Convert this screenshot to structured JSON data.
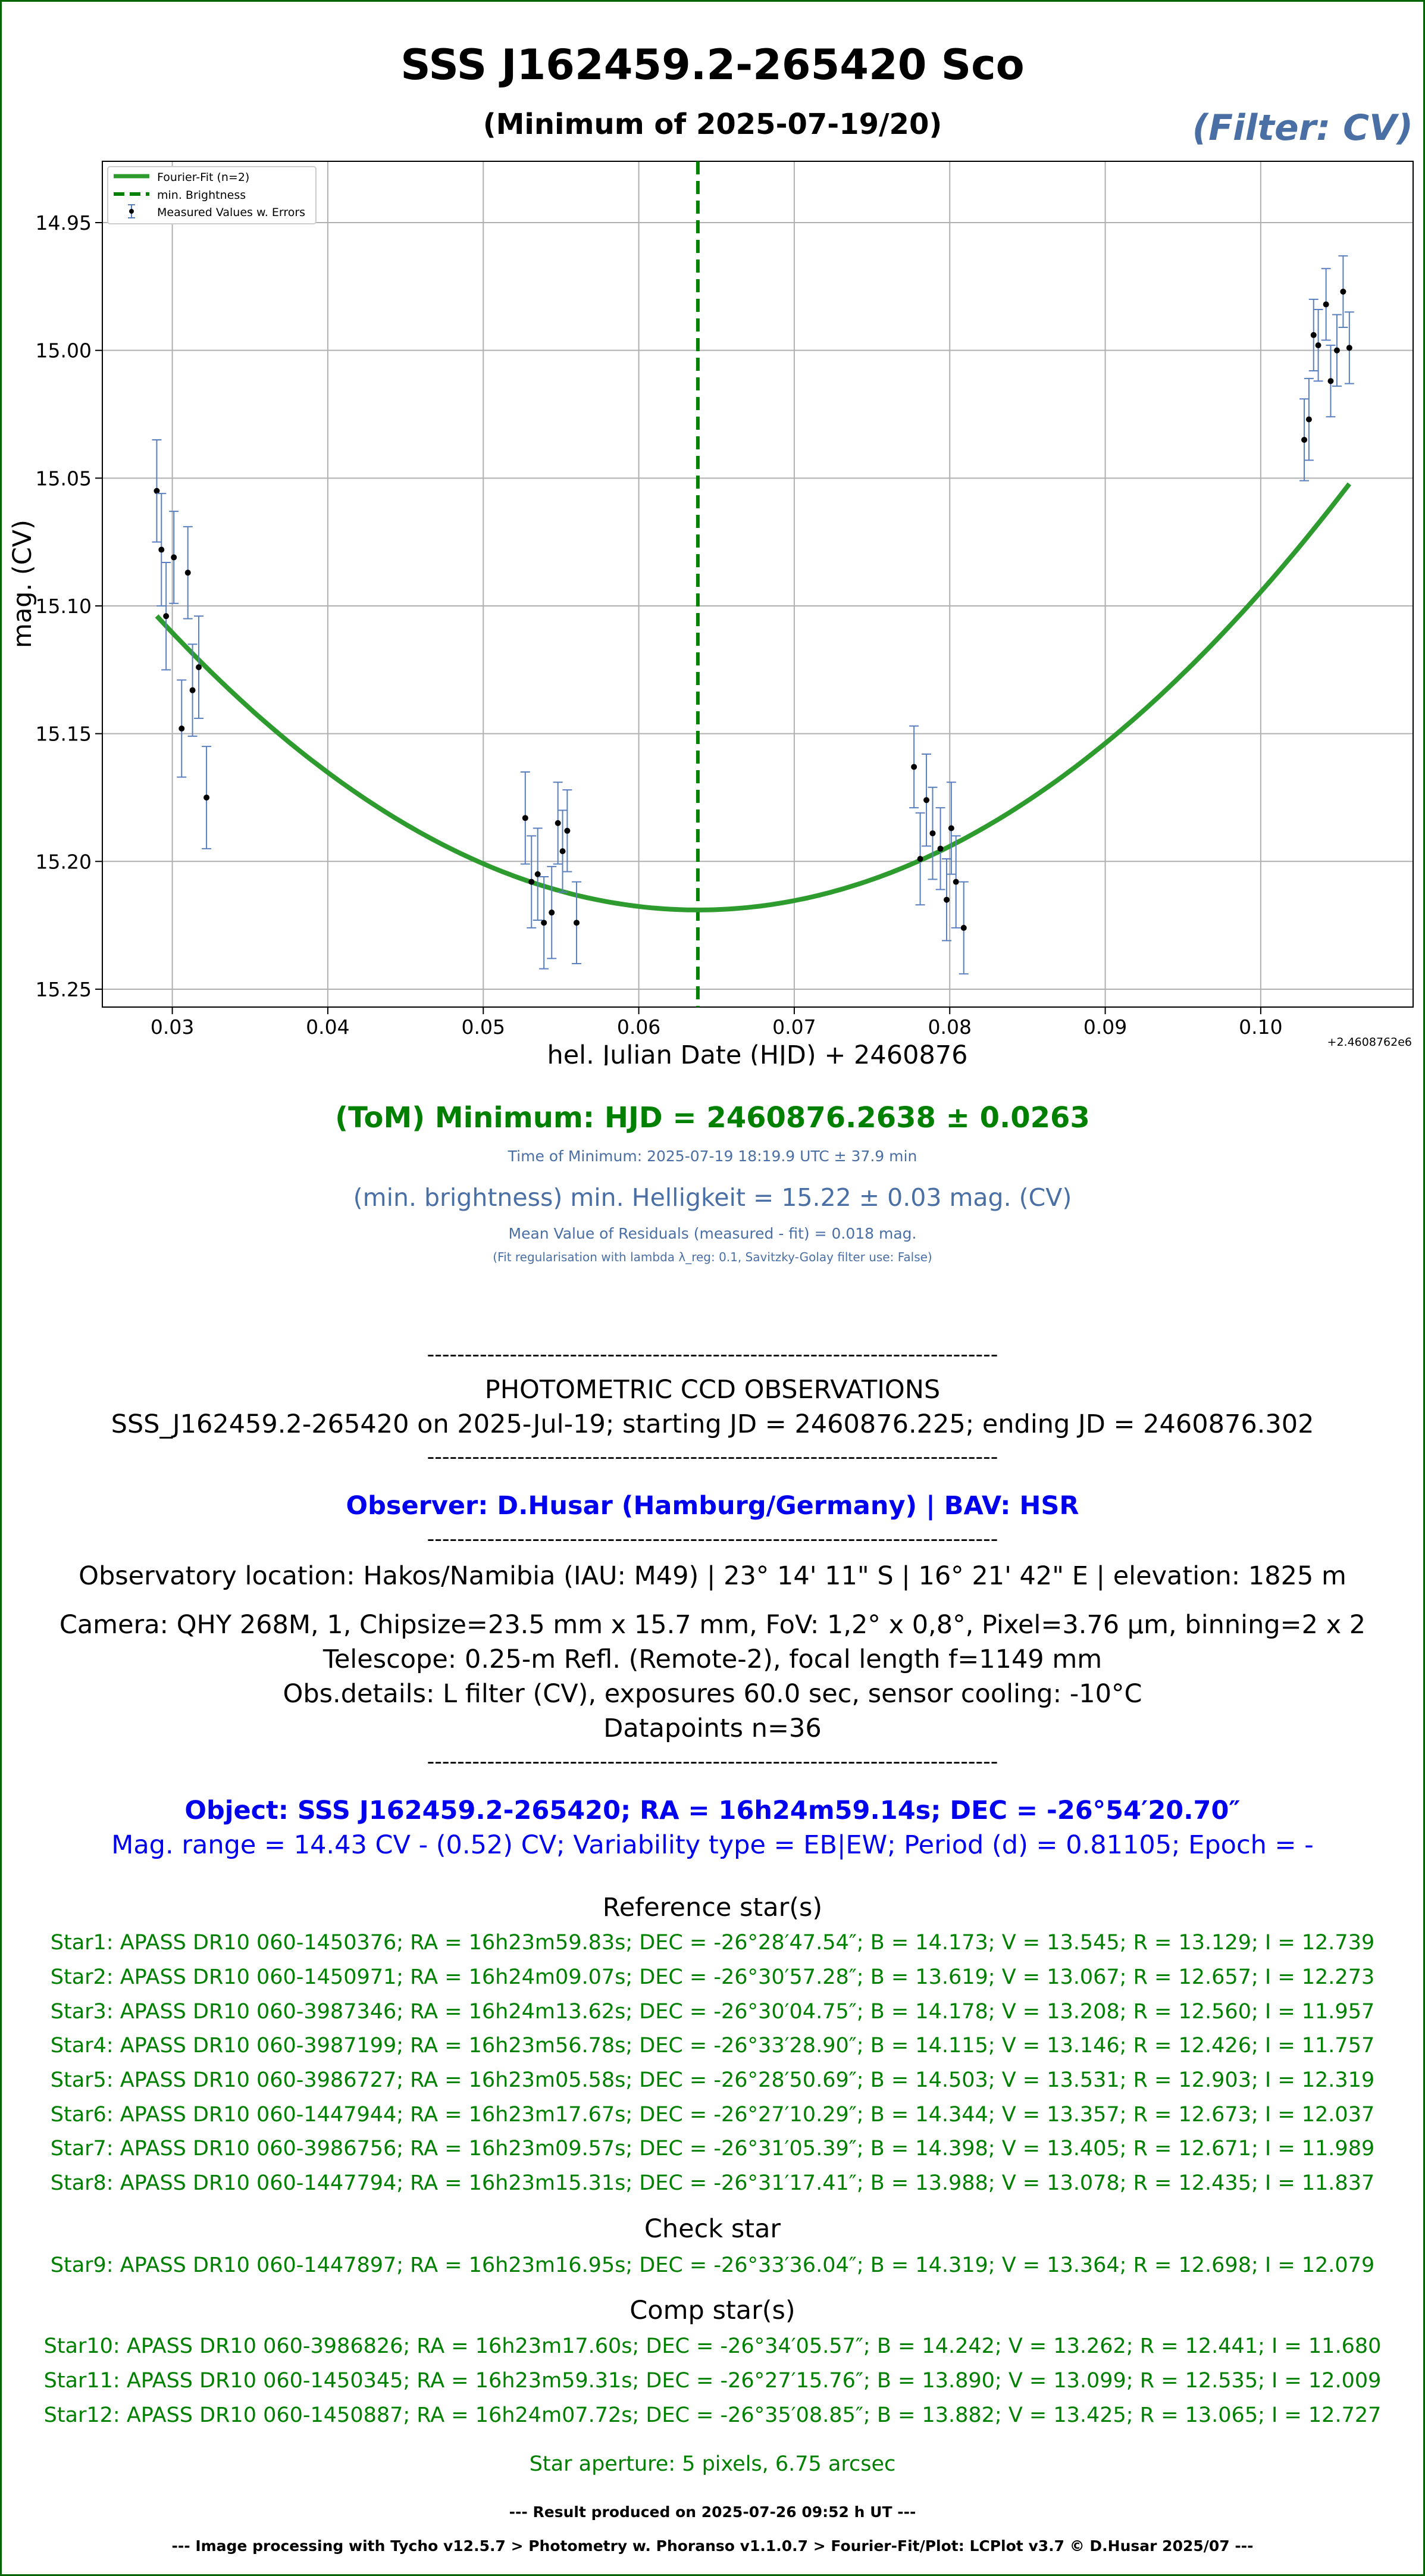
{
  "header": {
    "title": "SSS J162459.2-265420 Sco",
    "subtitle": "(Minimum of 2025-07-19/20)",
    "filter": "(Filter: CV)"
  },
  "colors": {
    "fit": "#2e9b2e",
    "min_line": "#008000",
    "error_bar": "#5a7fbf",
    "point": "#000000",
    "blue_text": "#4a6fa5",
    "green_text": "#008000",
    "observer_text": "#0000ee"
  },
  "chart_data": {
    "type": "scatter",
    "xlabel": "hel. Julian Date (HJD) + 2460876",
    "ylabel": "mag. (CV)",
    "offset_label": "+2.4608762e6",
    "xlim": [
      0.0255,
      0.1098
    ],
    "ylim": [
      15.257,
      14.926
    ],
    "y_inverted": true,
    "grid": true,
    "legend_position": "top-left",
    "x_ticks": [
      0.03,
      0.04,
      0.05,
      0.06,
      0.07,
      0.08,
      0.09,
      0.1
    ],
    "x_tick_labels": [
      "0.03",
      "0.04",
      "0.05",
      "0.06",
      "0.07",
      "0.08",
      "0.09",
      "0.10"
    ],
    "y_ticks": [
      14.95,
      15.0,
      15.05,
      15.1,
      15.15,
      15.2,
      15.25
    ],
    "y_tick_labels": [
      "14.95",
      "15.00",
      "15.05",
      "15.10",
      "15.15",
      "15.20",
      "15.25"
    ],
    "legend": [
      "Fourier-Fit (n=2)",
      "min. Brightness",
      "Measured Values w. Errors"
    ],
    "minimum_x": 0.0638,
    "fit_x_range": [
      0.029,
      0.1057
    ],
    "fit_parabola": {
      "x0": 0.0638,
      "y0": 15.219,
      "a": 95.0
    },
    "series": [
      {
        "name": "Measured Values w. Errors",
        "points": [
          {
            "x": 0.029,
            "y": 15.055,
            "err": 0.02
          },
          {
            "x": 0.0293,
            "y": 15.078,
            "err": 0.022
          },
          {
            "x": 0.0296,
            "y": 15.104,
            "err": 0.021
          },
          {
            "x": 0.0301,
            "y": 15.081,
            "err": 0.018
          },
          {
            "x": 0.0306,
            "y": 15.148,
            "err": 0.019
          },
          {
            "x": 0.031,
            "y": 15.087,
            "err": 0.018
          },
          {
            "x": 0.0313,
            "y": 15.133,
            "err": 0.018
          },
          {
            "x": 0.0317,
            "y": 15.124,
            "err": 0.02
          },
          {
            "x": 0.0322,
            "y": 15.175,
            "err": 0.02
          },
          {
            "x": 0.0527,
            "y": 15.183,
            "err": 0.018
          },
          {
            "x": 0.0531,
            "y": 15.208,
            "err": 0.018
          },
          {
            "x": 0.0535,
            "y": 15.205,
            "err": 0.018
          },
          {
            "x": 0.0539,
            "y": 15.224,
            "err": 0.018
          },
          {
            "x": 0.0544,
            "y": 15.22,
            "err": 0.018
          },
          {
            "x": 0.0548,
            "y": 15.185,
            "err": 0.016
          },
          {
            "x": 0.0551,
            "y": 15.196,
            "err": 0.016
          },
          {
            "x": 0.0554,
            "y": 15.188,
            "err": 0.016
          },
          {
            "x": 0.056,
            "y": 15.224,
            "err": 0.016
          },
          {
            "x": 0.0777,
            "y": 15.163,
            "err": 0.016
          },
          {
            "x": 0.0781,
            "y": 15.199,
            "err": 0.018
          },
          {
            "x": 0.0785,
            "y": 15.176,
            "err": 0.018
          },
          {
            "x": 0.0789,
            "y": 15.189,
            "err": 0.018
          },
          {
            "x": 0.0794,
            "y": 15.195,
            "err": 0.016
          },
          {
            "x": 0.0798,
            "y": 15.215,
            "err": 0.016
          },
          {
            "x": 0.0801,
            "y": 15.187,
            "err": 0.018
          },
          {
            "x": 0.0804,
            "y": 15.208,
            "err": 0.018
          },
          {
            "x": 0.0809,
            "y": 15.226,
            "err": 0.018
          },
          {
            "x": 0.1028,
            "y": 15.035,
            "err": 0.016
          },
          {
            "x": 0.1031,
            "y": 15.027,
            "err": 0.016
          },
          {
            "x": 0.1034,
            "y": 14.994,
            "err": 0.014
          },
          {
            "x": 0.1037,
            "y": 14.998,
            "err": 0.014
          },
          {
            "x": 0.1042,
            "y": 14.982,
            "err": 0.014
          },
          {
            "x": 0.1045,
            "y": 15.012,
            "err": 0.014
          },
          {
            "x": 0.1049,
            "y": 15.0,
            "err": 0.014
          },
          {
            "x": 0.1053,
            "y": 14.977,
            "err": 0.014
          },
          {
            "x": 0.1057,
            "y": 14.999,
            "err": 0.014
          }
        ]
      }
    ]
  },
  "results": {
    "tom_minimum": "(ToM) Minimum: HJD = 2460876.2638 ± 0.0263",
    "time_of_minimum": "Time of Minimum:   2025-07-19   18:19.9 UTC ± 37.9 min",
    "min_brightness": "(min. brightness) min. Helligkeit = 15.22 ± 0.03 mag. (CV)",
    "residuals": "Mean Value of Residuals (measured - fit) = 0.018 mag.",
    "regularisation": "(Fit regularisation with lambda λ_reg: 0.1, Savitzky-Golay filter use: False)"
  },
  "report": {
    "separator": "----------------------------------------------------------------------------",
    "heading": "PHOTOMETRIC CCD OBSERVATIONS",
    "run": "SSS_J162459.2-265420 on 2025-Jul-19; starting JD = 2460876.225; ending JD = 2460876.302",
    "observer": "Observer: D.Husar (Hamburg/Germany) | BAV: HSR",
    "location": "Observatory location: Hakos/Namibia (IAU: M49) | 23° 14' 11\" S | 16° 21' 42\" E | elevation: 1825 m",
    "camera": "Camera: QHY 268M, 1, Chipsize=23.5 mm x 15.7 mm, FoV: 1,2° x 0,8°, Pixel=3.76 µm, binning=2 x 2",
    "telescope": "Telescope: 0.25-m Refl. (Remote-2), focal length f=1149 mm",
    "obs_details": "Obs.details: L filter (CV), exposures 60.0 sec, sensor cooling: -10°C",
    "datapoints": "Datapoints n=36",
    "object": "Object: SSS J162459.2-265420; RA = 16h24m59.14s; DEC = -26°54′20.70″",
    "mag_range": "Mag. range = 14.43 CV - (0.52) CV; Variability type = EB|EW; Period (d) = 0.81105; Epoch = -",
    "reference_heading": "Reference star(s)",
    "reference_stars": [
      "Star1: APASS DR10 060-1450376; RA = 16h23m59.83s; DEC = -26°28′47.54″; B = 14.173; V = 13.545; R = 13.129; I = 12.739",
      "Star2: APASS DR10 060-1450971; RA = 16h24m09.07s; DEC = -26°30′57.28″; B = 13.619; V = 13.067; R = 12.657; I = 12.273",
      "Star3: APASS DR10 060-3987346; RA = 16h24m13.62s; DEC = -26°30′04.75″; B = 14.178; V = 13.208; R = 12.560; I = 11.957",
      "Star4: APASS DR10 060-3987199; RA = 16h23m56.78s; DEC = -26°33′28.90″; B = 14.115; V = 13.146; R = 12.426; I = 11.757",
      "Star5: APASS DR10 060-3986727; RA = 16h23m05.58s; DEC = -26°28′50.69″; B = 14.503; V = 13.531; R = 12.903; I = 12.319",
      "Star6: APASS DR10 060-1447944; RA = 16h23m17.67s; DEC = -26°27′10.29″; B = 14.344; V = 13.357; R = 12.673; I = 12.037",
      "Star7: APASS DR10 060-3986756; RA = 16h23m09.57s; DEC = -26°31′05.39″; B = 14.398; V = 13.405; R = 12.671; I = 11.989",
      "Star8: APASS DR10 060-1447794; RA = 16h23m15.31s; DEC = -26°31′17.41″; B = 13.988; V = 13.078; R = 12.435; I = 11.837"
    ],
    "check_heading": "Check star",
    "check_stars": [
      "Star9: APASS DR10 060-1447897; RA = 16h23m16.95s; DEC = -26°33′36.04″; B = 14.319; V = 13.364; R = 12.698; I = 12.079"
    ],
    "comp_heading": "Comp star(s)",
    "comp_stars": [
      "Star10: APASS DR10 060-3986826; RA = 16h23m17.60s; DEC = -26°34′05.57″; B = 14.242; V = 13.262; R = 12.441; I = 11.680",
      "Star11: APASS DR10 060-1450345; RA = 16h23m59.31s; DEC = -26°27′15.76″; B = 13.890; V = 13.099; R = 12.535; I = 12.009",
      "Star12: APASS DR10 060-1450887; RA = 16h24m07.72s; DEC = -26°35′08.85″; B = 13.882; V = 13.425; R = 13.065; I = 12.727"
    ],
    "aperture": "Star aperture: 5 pixels, 6.75 arcsec",
    "produced": "--- Result produced on 2025-07-26 09:52 h UT ---",
    "processing": "--- Image processing with Tycho v12.5.7 > Photometry w. Phoranso v1.1.0.7 > Fourier-Fit/Plot: LCPlot v3.7 © D.Husar 2025/07 ---"
  }
}
